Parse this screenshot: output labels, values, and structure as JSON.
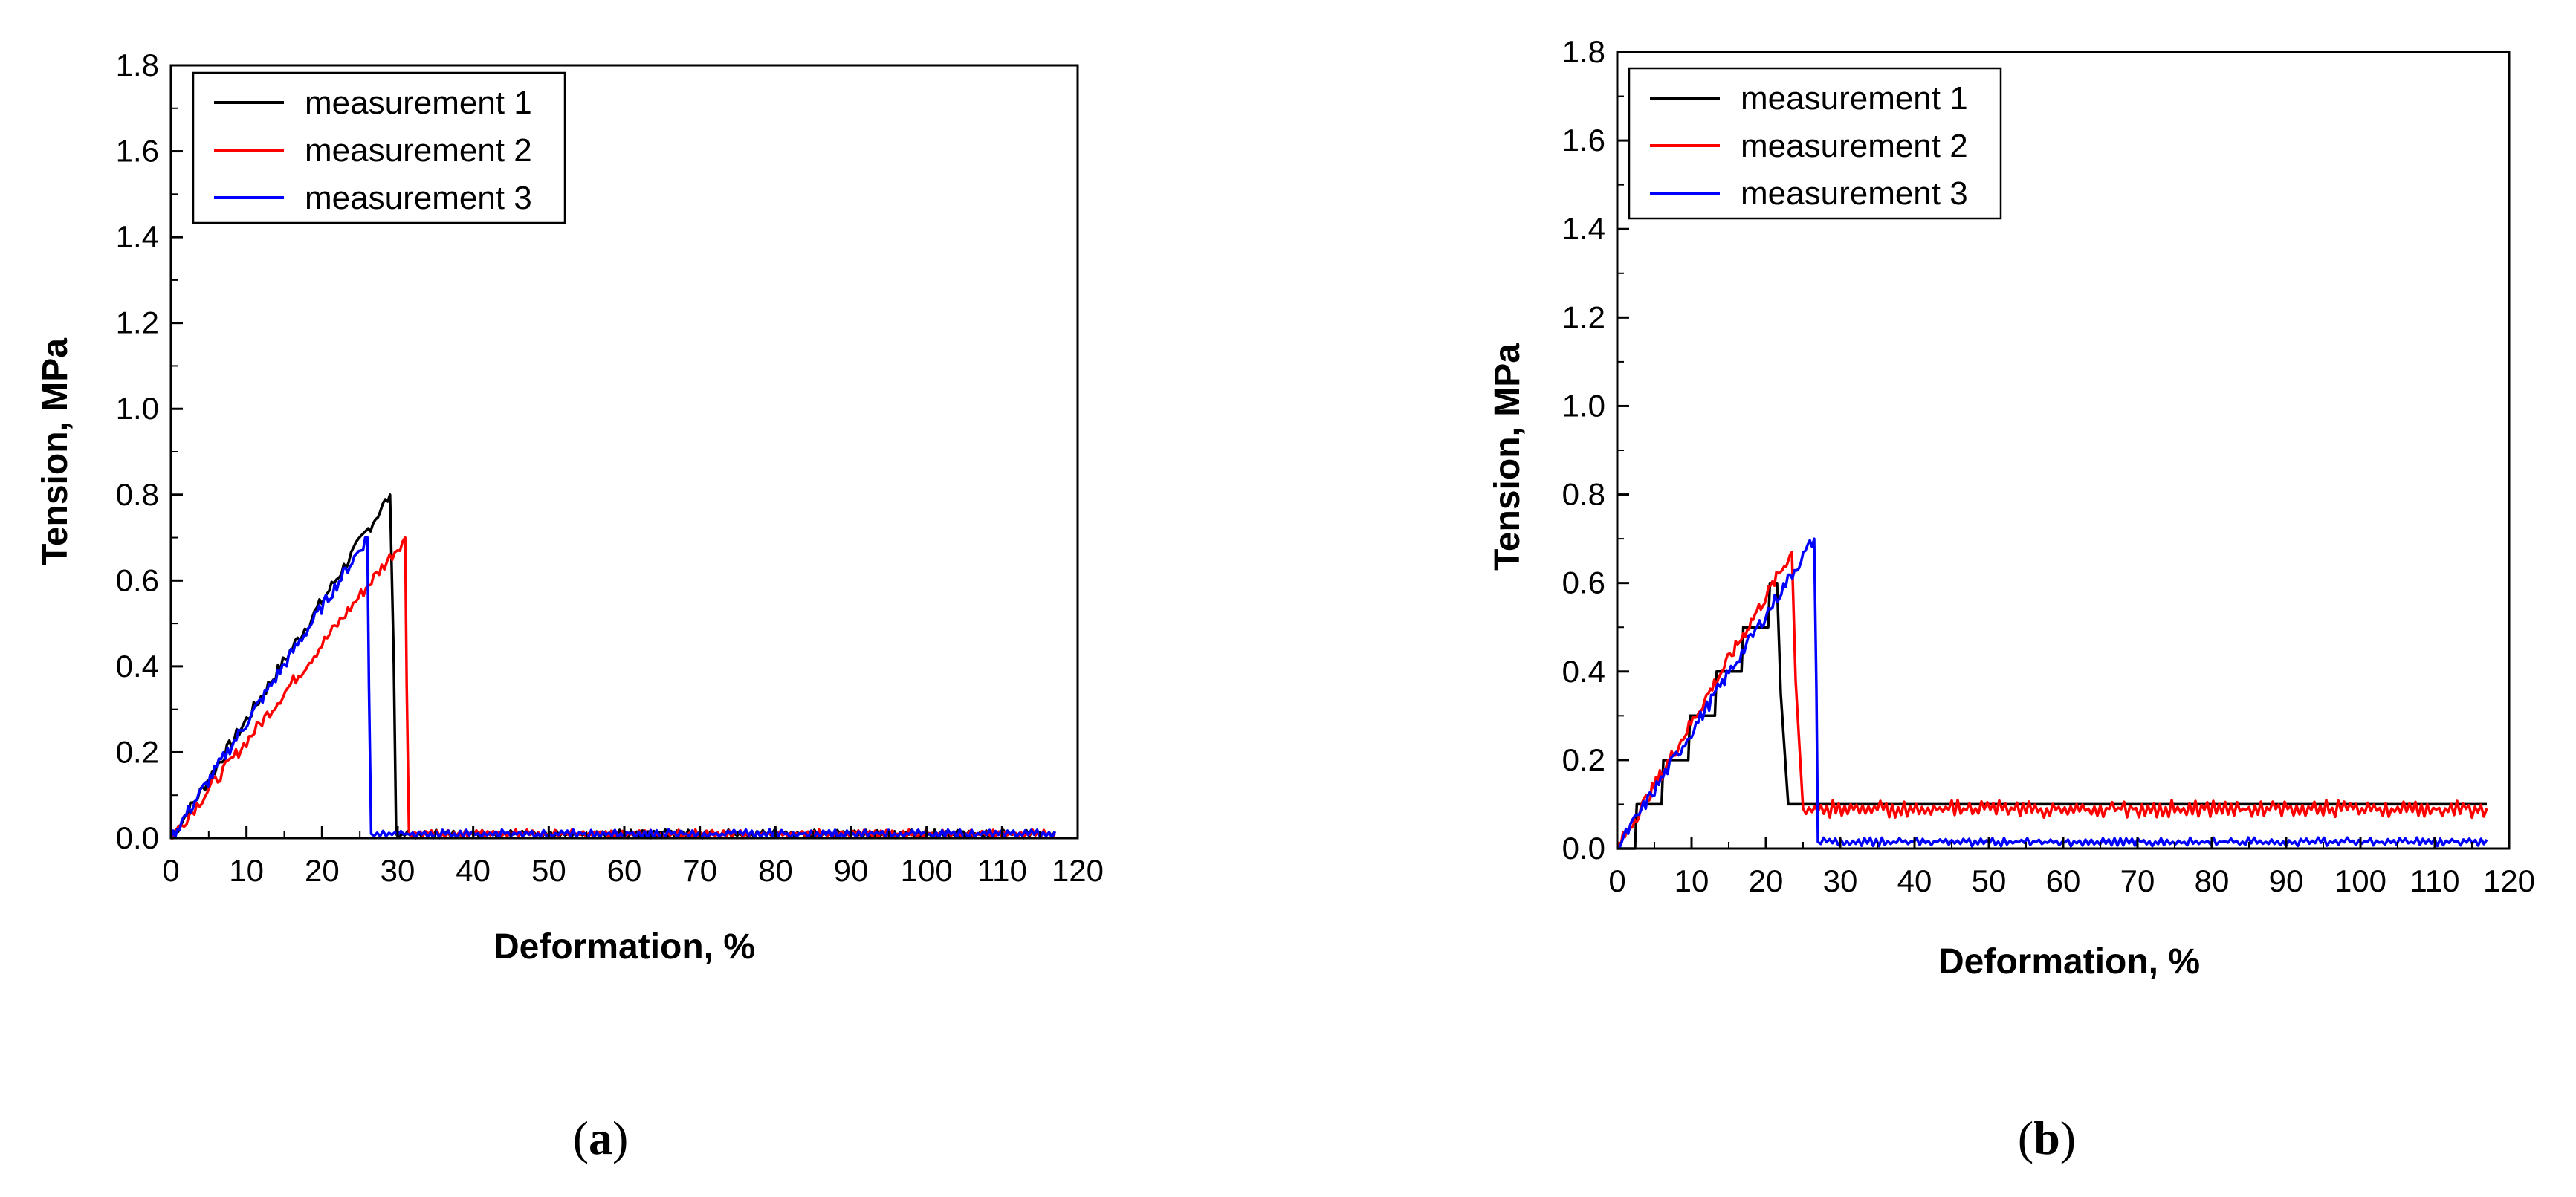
{
  "chart_data": [
    {
      "type": "line",
      "panel": "a",
      "caption": {
        "open": "(",
        "letter": "a",
        "close": ")"
      },
      "xlabel": "Deformation, %",
      "ylabel": "Tension, MPa",
      "xlim": [
        0,
        120
      ],
      "ylim": [
        0,
        1.8
      ],
      "xticks": [
        0,
        10,
        20,
        30,
        40,
        50,
        60,
        70,
        80,
        90,
        100,
        110,
        120
      ],
      "yticks": [
        0.0,
        0.2,
        0.4,
        0.6,
        0.8,
        1.0,
        1.2,
        1.4,
        1.6,
        1.8
      ],
      "grid": false,
      "legend_position": "top-left",
      "series": [
        {
          "name": "measurement 1",
          "color": "#000000",
          "peak_x": 29,
          "peak_y": 0.8,
          "drop_x": 29.5,
          "break_x": 29.8,
          "tail_y": 0.01,
          "tail_amp": 0.01,
          "end_x": 117,
          "noise": 0.01
        },
        {
          "name": "measurement 2",
          "color": "#ff0000",
          "peak_x": 31,
          "peak_y": 0.7,
          "drop_x": 31.2,
          "break_x": 31.5,
          "tail_y": 0.01,
          "tail_amp": 0.01,
          "end_x": 117,
          "noise": 0.01
        },
        {
          "name": "measurement 3",
          "color": "#0000ff",
          "peak_x": 26,
          "peak_y": 0.7,
          "drop_x": 26.2,
          "break_x": 26.5,
          "tail_y": 0.01,
          "tail_amp": 0.01,
          "end_x": 117,
          "noise": 0.01
        }
      ]
    },
    {
      "type": "line",
      "panel": "b",
      "caption": {
        "open": "(",
        "letter": "b",
        "close": ")"
      },
      "xlabel": "Deformation, %",
      "ylabel": "Tension, MPa",
      "xlim": [
        0,
        120
      ],
      "ylim": [
        0,
        1.8
      ],
      "xticks": [
        0,
        10,
        20,
        30,
        40,
        50,
        60,
        70,
        80,
        90,
        100,
        110,
        120
      ],
      "yticks": [
        0.0,
        0.2,
        0.4,
        0.6,
        0.8,
        1.0,
        1.2,
        1.4,
        1.6,
        1.8
      ],
      "grid": false,
      "legend_position": "top-left",
      "series": [
        {
          "name": "measurement 1",
          "color": "#000000",
          "peak_x": 21.5,
          "peak_y": 0.6,
          "drop_x": 22,
          "break_x": 23,
          "tail_y": 0.1,
          "tail_amp": 0.0,
          "end_x": 117,
          "noise": 0.0,
          "stepped": true
        },
        {
          "name": "measurement 2",
          "color": "#ff0000",
          "peak_x": 23.5,
          "peak_y": 0.67,
          "drop_x": 24,
          "break_x": 25,
          "tail_y": 0.09,
          "tail_amp": 0.02,
          "end_x": 117,
          "noise": 0.01
        },
        {
          "name": "measurement 3",
          "color": "#0000ff",
          "peak_x": 26.5,
          "peak_y": 0.7,
          "drop_x": 26.8,
          "break_x": 27,
          "tail_y": 0.015,
          "tail_amp": 0.01,
          "end_x": 117,
          "noise": 0.01
        }
      ]
    }
  ]
}
